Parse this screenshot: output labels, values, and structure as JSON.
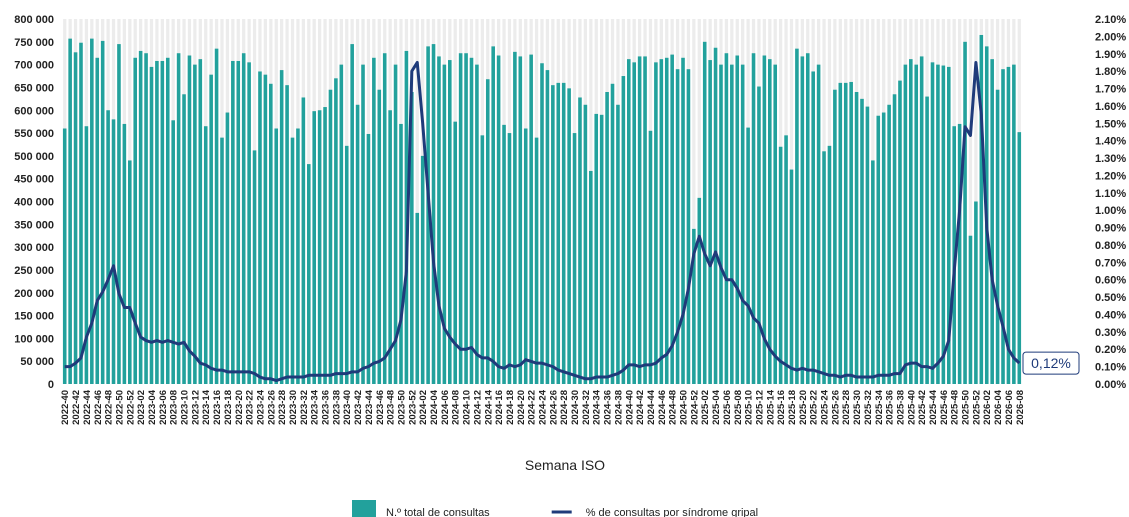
{
  "chart_data": {
    "type": "bar-line",
    "x_label": "Semana ISO",
    "categories": [
      "2022-40",
      null,
      "2022-42",
      null,
      "2022-44",
      null,
      "2022-46",
      null,
      "2022-48",
      null,
      "2022-50",
      null,
      "2022-52",
      null,
      "2023-02",
      null,
      "2023-04",
      null,
      "2023-06",
      null,
      "2023-08",
      null,
      "2023-10",
      null,
      "2023-12",
      null,
      "2023-14",
      null,
      "2023-16",
      null,
      "2023-18",
      null,
      "2023-20",
      null,
      "2023-22",
      null,
      "2023-24",
      null,
      "2023-26",
      null,
      "2023-28",
      null,
      "2023-30",
      null,
      "2023-32",
      null,
      "2023-34",
      null,
      "2023-36",
      null,
      "2023-38",
      null,
      "2023-40",
      null,
      "2023-42",
      null,
      "2023-44",
      null,
      "2023-46",
      null,
      "2023-48",
      null,
      "2023-50",
      null,
      "2023-52",
      null,
      "2024-02",
      null,
      "2024-04",
      null,
      "2024-06",
      null,
      "2024-08",
      null,
      "2024-10",
      null,
      "2024-12",
      null,
      "2024-14",
      null,
      "2024-16",
      null,
      "2024-18",
      null,
      "2024-20",
      null,
      "2024-22",
      null,
      "2024-24",
      null,
      "2024-26",
      null,
      "2024-28",
      null,
      "2024-30",
      null,
      "2024-32",
      null,
      "2024-34",
      null,
      "2024-36",
      null,
      "2024-38",
      null,
      "2024-40",
      null,
      "2024-42",
      null,
      "2024-44",
      null,
      "2024-46",
      null,
      "2024-48",
      null,
      "2024-50",
      null,
      "2024-52",
      null,
      "2025-02",
      null,
      "2025-04",
      null,
      "2025-06",
      null,
      "2025-08",
      null,
      "2025-10",
      null,
      "2025-12",
      null,
      "2025-14",
      null,
      "2025-16",
      null,
      "2025-18",
      null,
      "2025-20",
      null,
      "2025-22",
      null,
      "2025-24",
      null,
      "2025-26",
      null,
      "2025-28",
      null,
      "2025-30",
      null,
      "2025-32",
      null,
      "2025-34",
      null,
      "2025-36",
      null,
      "2025-38",
      null,
      "2025-40",
      null,
      "2025-42",
      null,
      "2025-44",
      null,
      "2025-46",
      null,
      "2025-48",
      null,
      "2025-50",
      null,
      "2025-52",
      null,
      "2026-02",
      null,
      "2026-04",
      null,
      "2026-06",
      null,
      "2026-08"
    ],
    "series": [
      {
        "name": "N.º total de consultas",
        "type": "bar",
        "color": "#22a19c",
        "values": [
          560000,
          757000,
          727000,
          748000,
          565000,
          757000,
          715000,
          752000,
          600000,
          580000,
          745000,
          570000,
          490000,
          715000,
          730000,
          725000,
          695000,
          708000,
          708000,
          715000,
          578000,
          725000,
          635000,
          720000,
          700000,
          712000,
          565000,
          678000,
          735000,
          540000,
          595000,
          708000,
          708000,
          725000,
          705000,
          512000,
          685000,
          678000,
          658000,
          560000,
          688000,
          655000,
          540000,
          560000,
          628000,
          482000,
          598000,
          600000,
          607000,
          645000,
          670000,
          700000,
          522000,
          745000,
          612000,
          700000,
          548000,
          715000,
          645000,
          725000,
          600000,
          700000,
          570000,
          730000,
          640000,
          375000,
          500000,
          740000,
          745000,
          718000,
          700000,
          710000,
          575000,
          725000,
          725000,
          715000,
          700000,
          545000,
          668000,
          740000,
          720000,
          568000,
          550000,
          728000,
          718000,
          560000,
          722000,
          540000,
          703000,
          688000,
          655000,
          660000,
          660000,
          648000,
          550000,
          628000,
          612000,
          467000,
          592000,
          590000,
          640000,
          658000,
          612000,
          675000,
          712000,
          705000,
          718000,
          718000,
          555000,
          705000,
          712000,
          715000,
          722000,
          690000,
          715000,
          690000,
          340000,
          408000,
          750000,
          710000,
          737000,
          700000,
          725000,
          700000,
          720000,
          700000,
          562000,
          725000,
          652000,
          720000,
          712000,
          700000,
          520000,
          545000,
          470000,
          735000,
          718000,
          725000,
          685000,
          700000,
          510000,
          522000,
          645000,
          660000,
          660000,
          662000,
          640000,
          625000,
          608000,
          490000,
          588000,
          595000,
          612000,
          635000,
          665000,
          700000,
          712000,
          700000,
          718000,
          630000,
          705000,
          700000,
          698000,
          695000,
          565000,
          570000,
          750000,
          325000,
          400000,
          765000,
          740000,
          712000,
          645000,
          690000,
          695000,
          700000,
          552000
        ]
      },
      {
        "name": "% de consultas por síndrome gripal",
        "type": "line",
        "axis": "y2",
        "color": "#1f3b7a",
        "values": [
          0.1,
          0.1,
          0.12,
          0.15,
          0.27,
          0.35,
          0.48,
          0.53,
          0.6,
          0.68,
          0.52,
          0.44,
          0.44,
          0.35,
          0.27,
          0.25,
          0.24,
          0.25,
          0.24,
          0.25,
          0.24,
          0.23,
          0.24,
          0.19,
          0.16,
          0.12,
          0.11,
          0.09,
          0.08,
          0.08,
          0.07,
          0.07,
          0.07,
          0.07,
          0.07,
          0.06,
          0.04,
          0.03,
          0.03,
          0.02,
          0.03,
          0.04,
          0.04,
          0.04,
          0.04,
          0.05,
          0.05,
          0.05,
          0.05,
          0.05,
          0.06,
          0.06,
          0.06,
          0.07,
          0.07,
          0.09,
          0.1,
          0.12,
          0.13,
          0.15,
          0.2,
          0.25,
          0.37,
          0.65,
          1.8,
          1.85,
          1.5,
          1.1,
          0.7,
          0.45,
          0.32,
          0.27,
          0.23,
          0.2,
          0.2,
          0.21,
          0.17,
          0.15,
          0.15,
          0.13,
          0.1,
          0.09,
          0.11,
          0.1,
          0.11,
          0.14,
          0.13,
          0.12,
          0.12,
          0.11,
          0.1,
          0.08,
          0.07,
          0.06,
          0.05,
          0.04,
          0.03,
          0.03,
          0.04,
          0.04,
          0.04,
          0.05,
          0.06,
          0.08,
          0.11,
          0.11,
          0.1,
          0.11,
          0.11,
          0.12,
          0.15,
          0.17,
          0.22,
          0.3,
          0.4,
          0.55,
          0.75,
          0.85,
          0.75,
          0.68,
          0.76,
          0.67,
          0.6,
          0.6,
          0.55,
          0.48,
          0.45,
          0.38,
          0.35,
          0.26,
          0.2,
          0.16,
          0.13,
          0.11,
          0.09,
          0.08,
          0.09,
          0.08,
          0.08,
          0.07,
          0.06,
          0.05,
          0.05,
          0.04,
          0.05,
          0.05,
          0.04,
          0.04,
          0.04,
          0.04,
          0.05,
          0.05,
          0.05,
          0.06,
          0.06,
          0.11,
          0.12,
          0.12,
          0.1,
          0.1,
          0.09,
          0.12,
          0.16,
          0.25,
          0.65,
          1.0,
          1.48,
          1.43,
          1.85,
          1.55,
          0.9,
          0.6,
          0.45,
          0.33,
          0.2,
          0.15,
          0.12
        ]
      }
    ],
    "annotation": "0,12%",
    "ylim": [
      0,
      800000
    ],
    "yticks": [
      0,
      {
        "value": 50000,
        "label": "50 000"
      },
      {
        "value": 100000,
        "label": "100 000"
      },
      {
        "value": 150000,
        "label": "150 000"
      },
      {
        "value": 200000,
        "label": "200 000"
      },
      {
        "value": 250000,
        "label": "250 000"
      },
      {
        "value": 300000,
        "label": "300 000"
      },
      {
        "value": 350000,
        "label": "350 000"
      },
      {
        "value": 400000,
        "label": "400 000"
      },
      {
        "value": 450000,
        "label": "450 000"
      },
      {
        "value": 500000,
        "label": "500 000"
      },
      {
        "value": 550000,
        "label": "550 000"
      },
      {
        "value": 600000,
        "label": "600 000"
      },
      {
        "value": 650000,
        "label": "650 000"
      },
      {
        "value": 700000,
        "label": "700 000"
      },
      {
        "value": 750000,
        "label": "750 000"
      },
      {
        "value": 800000,
        "label": "800 000"
      }
    ],
    "y2lim": [
      0,
      2.1
    ],
    "y2ticks": [
      {
        "value": 0,
        "label": "0.00%"
      },
      {
        "value": 0.1,
        "label": "0.10%"
      },
      {
        "value": 0.2,
        "label": "0.20%"
      },
      {
        "value": 0.3,
        "label": "0.30%"
      },
      {
        "value": 0.4,
        "label": "0.40%"
      },
      {
        "value": 0.5,
        "label": "0.50%"
      },
      {
        "value": 0.6,
        "label": "0.60%"
      },
      {
        "value": 0.7,
        "label": "0.70%"
      },
      {
        "value": 0.8,
        "label": "0.80%"
      },
      {
        "value": 0.9,
        "label": "0.90%"
      },
      {
        "value": 1.0,
        "label": "1.00%"
      },
      {
        "value": 1.1,
        "label": "1.10%"
      },
      {
        "value": 1.2,
        "label": "1.20%"
      },
      {
        "value": 1.3,
        "label": "1.30%"
      },
      {
        "value": 1.4,
        "label": "1.40%"
      },
      {
        "value": 1.5,
        "label": "1.50%"
      },
      {
        "value": 1.6,
        "label": "1.60%"
      },
      {
        "value": 1.7,
        "label": "1.70%"
      },
      {
        "value": 1.8,
        "label": "1.80%"
      },
      {
        "value": 1.9,
        "label": "1.90%"
      },
      {
        "value": 2.0,
        "label": "2.00%"
      },
      {
        "value": 2.1,
        "label": "2.10%"
      }
    ],
    "legend": "bottom"
  }
}
